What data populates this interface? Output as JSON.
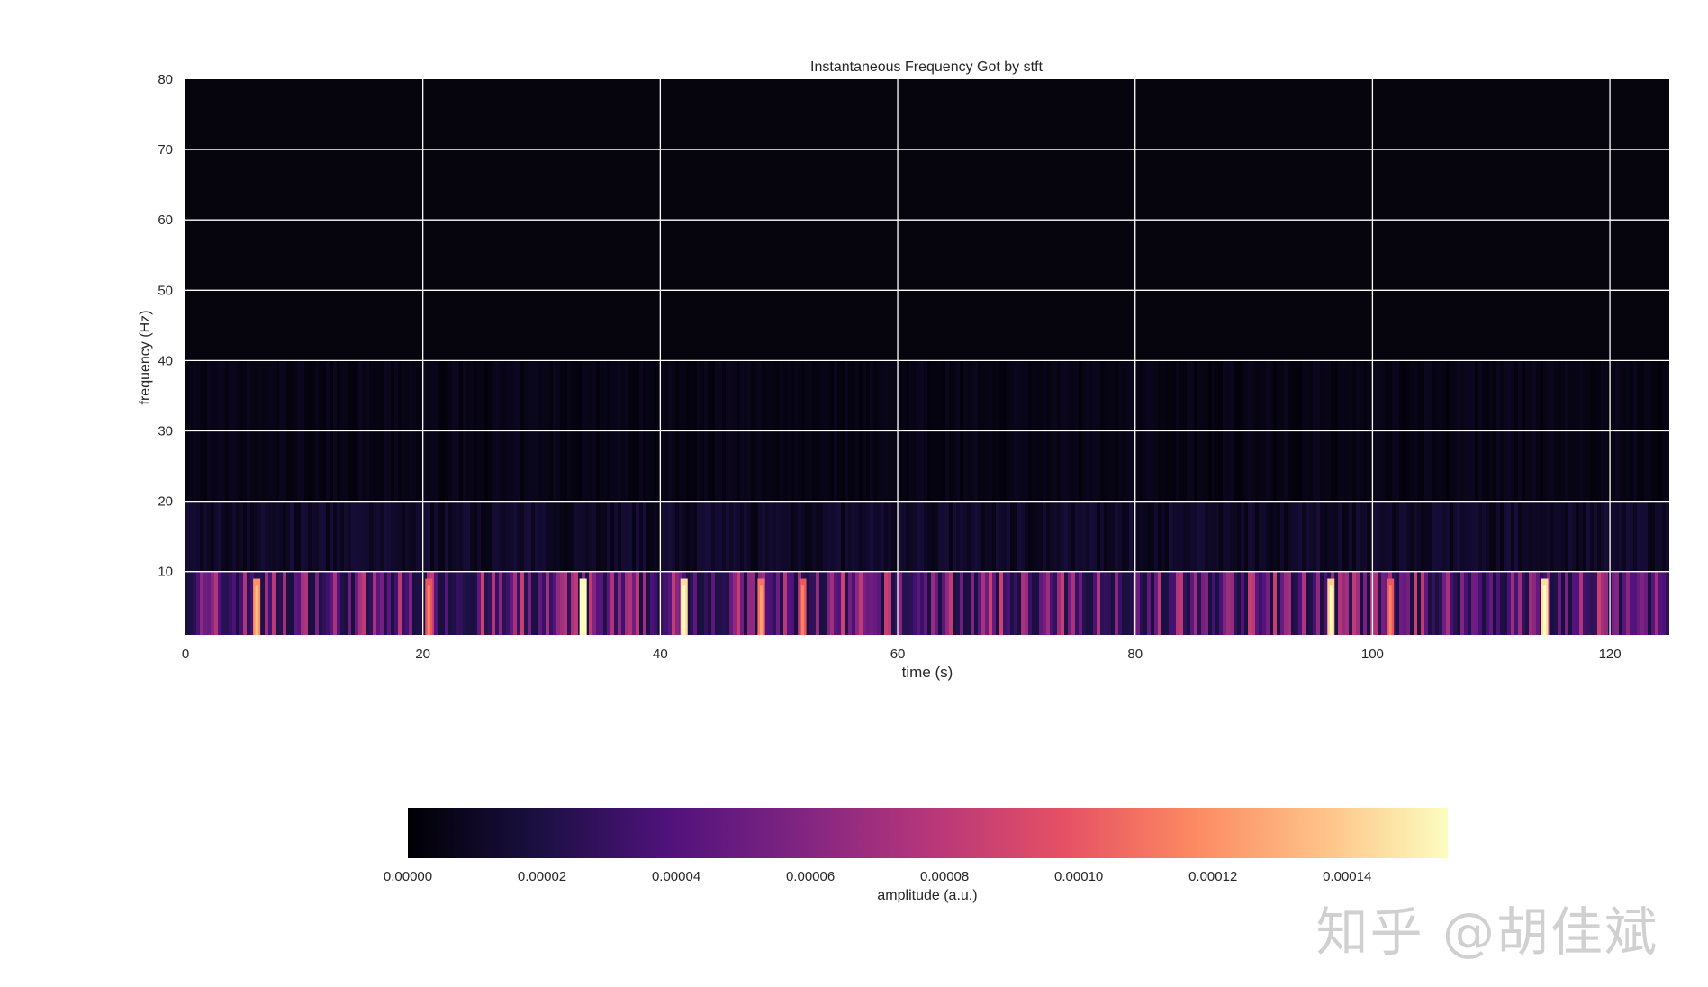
{
  "chart_data": {
    "type": "heatmap",
    "title": "Instantaneous Frequency Got by stft",
    "xlabel": "time (s)",
    "ylabel": "frequency (Hz)",
    "xlim": [
      0,
      125
    ],
    "ylim": [
      1,
      80
    ],
    "x_ticks": [
      "0",
      "20",
      "40",
      "60",
      "80",
      "100",
      "120"
    ],
    "y_ticks": [
      "10",
      "20",
      "30",
      "40",
      "50",
      "60",
      "70",
      "80"
    ],
    "x_tick_values": [
      0,
      20,
      40,
      60,
      80,
      100,
      120
    ],
    "y_tick_values": [
      10,
      20,
      30,
      40,
      50,
      60,
      70,
      80
    ],
    "grid": true,
    "colormap": "magma",
    "colorbar": {
      "label": "amplitude (a.u.)",
      "range": [
        0,
        0.000155
      ],
      "ticks": [
        "0.00000",
        "0.00002",
        "0.00004",
        "0.00006",
        "0.00008",
        "0.00010",
        "0.00012",
        "0.00014"
      ],
      "tick_values": [
        0,
        2e-05,
        4e-05,
        6e-05,
        8e-05,
        0.0001,
        0.00012,
        0.00014
      ],
      "placement": "bottom"
    },
    "bright_events": [
      {
        "time": 6,
        "freq": 4,
        "amplitude": 0.00012
      },
      {
        "time": 20.5,
        "freq": 4,
        "amplitude": 0.0001
      },
      {
        "time": 33.5,
        "freq": 3,
        "amplitude": 0.000155
      },
      {
        "time": 42,
        "freq": 3,
        "amplitude": 0.000145
      },
      {
        "time": 48.5,
        "freq": 4,
        "amplitude": 0.00011
      },
      {
        "time": 52,
        "freq": 4,
        "amplitude": 0.0001
      },
      {
        "time": 96.5,
        "freq": 3,
        "amplitude": 0.00014
      },
      {
        "time": 101.5,
        "freq": 4,
        "amplitude": 0.0001
      },
      {
        "time": 114.5,
        "freq": 3,
        "amplitude": 0.000145
      }
    ]
  },
  "watermark": "知乎 @胡佳斌"
}
